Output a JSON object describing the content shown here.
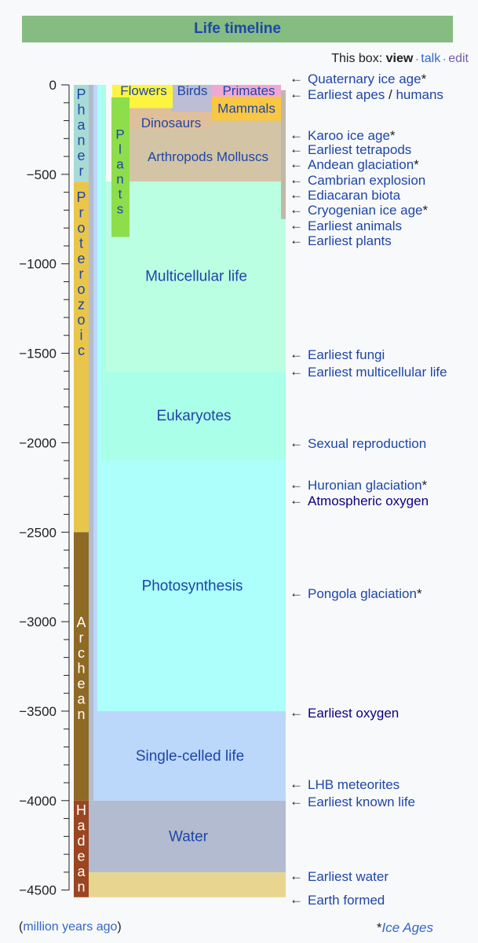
{
  "header": {
    "title": "Life timeline"
  },
  "navbox": {
    "prefix": "This box:",
    "view": "view",
    "talk": "talk",
    "edit": "edit"
  },
  "footer": {
    "left_open": "(",
    "left_text": "million years ago",
    "left_close": ")",
    "right_star": "*",
    "right_text": "Ice Ages"
  },
  "colors": {
    "water": "#b2bbcf",
    "earth": "#e8d58f",
    "single": "#bbd7fa",
    "photo": "#acfffb",
    "euk": "#aaffe8",
    "multi": "#bbffe3",
    "arthropods": "#d3c4a6",
    "dinosaurs": "#e0c09a",
    "mammals": "#f9c743",
    "primates": "#f0a8d3",
    "birds": "#bdbdd6",
    "flowers": "#fdf43f",
    "plants": "#8edd4a",
    "phanerozoic": "#a9dbd5",
    "proterozoic": "#e9c64b",
    "archean": "#8f6a24",
    "hadean": "#9b4521",
    "link": "#1e46a8",
    "dark_link": "#0b0080"
  },
  "chart_data": {
    "type": "timeline",
    "title": "Life timeline",
    "ylabel": "million years ago",
    "ylim": [
      -4600,
      0
    ],
    "ticks": [
      {
        "value": 0,
        "label": "0"
      },
      {
        "value": -500,
        "label": "−500"
      },
      {
        "value": -1000,
        "label": "−1000"
      },
      {
        "value": -1500,
        "label": "−1500"
      },
      {
        "value": -2000,
        "label": "−2000"
      },
      {
        "value": -2500,
        "label": "−2500"
      },
      {
        "value": -3000,
        "label": "−3000"
      },
      {
        "value": -3500,
        "label": "−3500"
      },
      {
        "value": -4000,
        "label": "−4000"
      },
      {
        "value": -4500,
        "label": "−4500"
      }
    ],
    "minor_tick_step": 100,
    "eons": [
      {
        "name": "Phanerozoic",
        "start": 0,
        "end": -541,
        "color_key": "phanerozoic",
        "text_color": "#1e46a8"
      },
      {
        "name": "Proterozoic",
        "start": -541,
        "end": -2500,
        "color_key": "proterozoic",
        "text_color": "#1e46a8"
      },
      {
        "name": "Archean",
        "start": -2500,
        "end": -4000,
        "color_key": "archean",
        "text_color": "#ffffff"
      },
      {
        "name": "Hadean",
        "start": -4000,
        "end": -4540,
        "color_key": "hadean",
        "text_color": "#ffffff"
      }
    ],
    "bands": [
      {
        "label": "",
        "start": -4400,
        "end": -4540,
        "color_key": "earth",
        "column": "full"
      },
      {
        "label": "Water",
        "start": -4000,
        "end": -4400,
        "color_key": "water",
        "column": "full"
      },
      {
        "label": "Single-celled life",
        "start": -3500,
        "end": -4000,
        "color_key": "single",
        "column": "single"
      },
      {
        "label": "Photosynthesis",
        "start": -2100,
        "end": -3500,
        "color_key": "photo",
        "column": "photo"
      },
      {
        "label": "Eukaryotes",
        "start": -1600,
        "end": -2100,
        "color_key": "euk",
        "column": "euk"
      },
      {
        "label": "Multicellular life",
        "start": -540,
        "end": -1600,
        "color_key": "multi",
        "column": "multi"
      },
      {
        "label": "Arthropods Molluscs",
        "start": 0,
        "end": -540,
        "color_key": "arthropods",
        "column": "arthro"
      },
      {
        "label": "Dinosaurs",
        "start": -65,
        "end": -250,
        "color_key": "dinosaurs",
        "column": "dino"
      },
      {
        "label": "Mammals",
        "start": -10,
        "end": -200,
        "color_key": "mammals",
        "column": "mammal"
      },
      {
        "label": "Primates",
        "start": 0,
        "end": -65,
        "color_key": "primates",
        "column": "primate"
      },
      {
        "label": "Birds",
        "start": 0,
        "end": -150,
        "color_key": "birds",
        "column": "bird"
      },
      {
        "label": "Flowers",
        "start": 0,
        "end": -130,
        "color_key": "flowers",
        "column": "flower"
      },
      {
        "label": "Plants",
        "start": -70,
        "end": -850,
        "color_key": "plants",
        "column": "plant",
        "vertical": true
      }
    ],
    "events": [
      {
        "label": "Quaternary ice age",
        "star": true,
        "value": 0,
        "dark": false
      },
      {
        "label": "Earliest apes",
        "label2": "humans",
        "value": -25,
        "dark": false
      },
      {
        "label": "Karoo ice age",
        "star": true,
        "value": -300,
        "dark": false
      },
      {
        "label": "Earliest tetrapods",
        "value": -370,
        "dark": false
      },
      {
        "label": "Andean glaciation",
        "star": true,
        "value": -450,
        "dark": false
      },
      {
        "label": "Cambrian explosion",
        "value": -540,
        "dark": false
      },
      {
        "label": "Ediacaran biota",
        "value": -630,
        "dark": false
      },
      {
        "label": "Cryogenian ice age",
        "star": true,
        "value": -700,
        "dark": false
      },
      {
        "label": "Earliest animals",
        "value": -750,
        "dark": false
      },
      {
        "label": "Earliest plants",
        "value": -850,
        "dark": false
      },
      {
        "label": "Earliest fungi",
        "value": -1500,
        "dark": false
      },
      {
        "label": "Earliest multicellular life",
        "value": -1600,
        "dark": false
      },
      {
        "label": "Sexual reproduction",
        "value": -2000,
        "dark": false
      },
      {
        "label": "Huronian glaciation",
        "star": true,
        "value": -2250,
        "dark": false
      },
      {
        "label": "Atmospheric oxygen",
        "value": -2300,
        "dark": true
      },
      {
        "label": "Pongola glaciation",
        "star": true,
        "value": -2850,
        "dark": false
      },
      {
        "label": "Earliest oxygen",
        "value": -3500,
        "dark": true
      },
      {
        "label": "LHB meteorites",
        "value": -3900,
        "dark": false
      },
      {
        "label": "Earliest known life",
        "value": -4000,
        "dark": false
      },
      {
        "label": "Earliest water",
        "value": -4400,
        "dark": false
      },
      {
        "label": "Earth formed",
        "value": -4540,
        "dark": false
      }
    ]
  }
}
